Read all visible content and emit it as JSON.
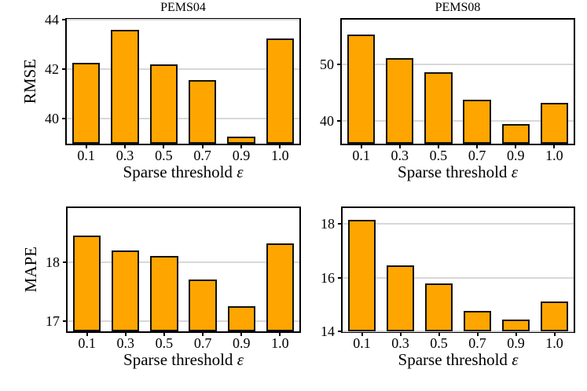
{
  "figure": {
    "background": "#ffffff",
    "bar_fill": "#FFA500",
    "bar_edge": "#111111",
    "grid_color": "#d8d8d8",
    "spine_color": "#000000",
    "text_color": "#000000"
  },
  "chart_data": [
    {
      "type": "bar",
      "title": "PEMS04",
      "ylabel": "RMSE",
      "xlabel": "Sparse threshold ε",
      "xlabel_text": "Sparse threshold",
      "xlabel_symbol": "ε",
      "categories": [
        "0.1",
        "0.3",
        "0.5",
        "0.7",
        "0.9",
        "1.0"
      ],
      "values": [
        42.25,
        43.6,
        42.2,
        41.55,
        39.3,
        43.25
      ],
      "yticks": [
        40,
        42,
        44
      ],
      "ylim": [
        39,
        44
      ],
      "grid": true
    },
    {
      "type": "bar",
      "title": "PEMS08",
      "ylabel": "",
      "xlabel": "Sparse threshold ε",
      "xlabel_text": "Sparse threshold",
      "xlabel_symbol": "ε",
      "categories": [
        "0.1",
        "0.3",
        "0.5",
        "0.7",
        "0.9",
        "1.0"
      ],
      "values": [
        55.4,
        51.2,
        48.7,
        43.8,
        39.5,
        43.2
      ],
      "yticks": [
        40,
        50
      ],
      "ylim": [
        36,
        58
      ],
      "grid": true
    },
    {
      "type": "bar",
      "title": "",
      "ylabel": "MAPE",
      "xlabel": "Sparse threshold ε",
      "xlabel_text": "Sparse threshold",
      "xlabel_symbol": "ε",
      "categories": [
        "0.1",
        "0.3",
        "0.5",
        "0.7",
        "0.9",
        "1.0"
      ],
      "values": [
        18.45,
        18.2,
        18.1,
        17.7,
        17.25,
        18.32
      ],
      "yticks": [
        17,
        18
      ],
      "ylim": [
        16.82,
        18.92
      ],
      "grid": true
    },
    {
      "type": "bar",
      "title": "",
      "ylabel": "",
      "xlabel": "Sparse threshold ε",
      "xlabel_text": "Sparse threshold",
      "xlabel_symbol": "ε",
      "categories": [
        "0.1",
        "0.3",
        "0.5",
        "0.7",
        "0.9",
        "1.0"
      ],
      "values": [
        18.15,
        16.45,
        15.78,
        14.75,
        14.45,
        15.1
      ],
      "yticks": [
        14,
        16,
        18
      ],
      "ylim": [
        14,
        18.6
      ],
      "grid": true
    }
  ]
}
